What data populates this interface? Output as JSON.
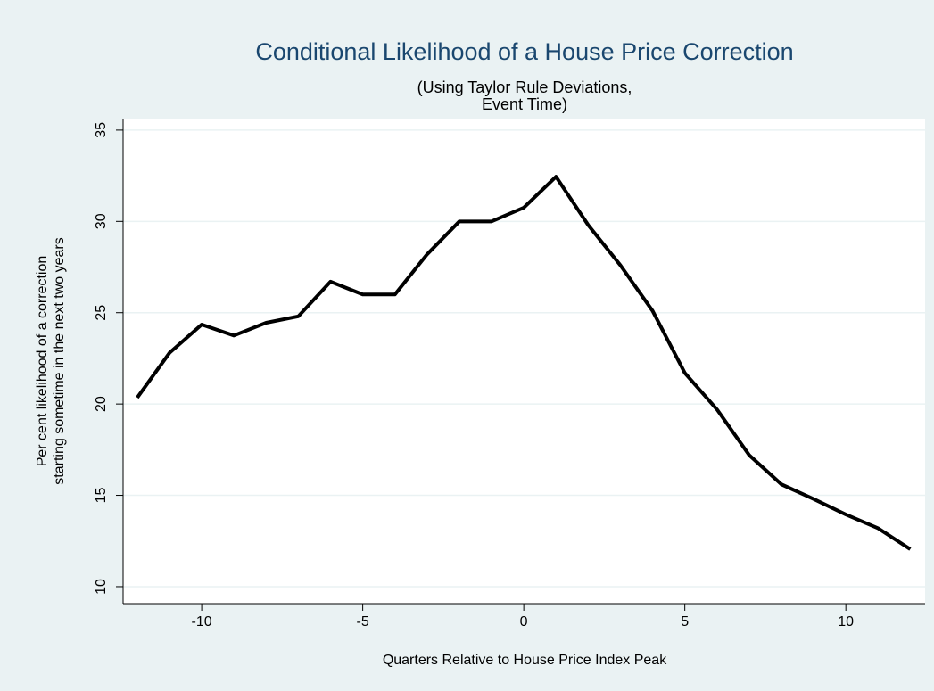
{
  "chart_data": {
    "type": "line",
    "title": "Conditional Likelihood of a House Price Correction",
    "subtitle": [
      "(Using Taylor Rule Deviations,",
      "Event Time)"
    ],
    "xlabel": "Quarters Relative to House Price Index Peak",
    "ylabel": [
      "Per cent likelihood of a correction",
      "starting sometime in the next two years"
    ],
    "x": [
      -12,
      -11,
      -10,
      -9,
      -8,
      -7,
      -6,
      -5,
      -4,
      -3,
      -2,
      -1,
      0,
      1,
      2,
      3,
      4,
      5,
      6,
      7,
      8,
      9,
      10,
      11,
      12
    ],
    "series": [
      {
        "color": "#000000",
        "values": [
          20.35,
          22.8,
          24.35,
          23.75,
          24.45,
          24.8,
          26.7,
          26.0,
          26.0,
          28.2,
          30.0,
          30.0,
          30.75,
          32.45,
          29.8,
          27.6,
          25.1,
          21.7,
          19.7,
          17.2,
          15.6,
          14.8,
          13.95,
          13.2,
          12.05
        ]
      }
    ],
    "xlim": [
      -12.44,
      12.46
    ],
    "xticks": [
      -10,
      -5,
      0,
      5,
      10
    ],
    "ylim": [
      9.07,
      35.63
    ],
    "yticks": [
      10,
      15,
      20,
      25,
      30,
      35
    ],
    "grid": true
  }
}
